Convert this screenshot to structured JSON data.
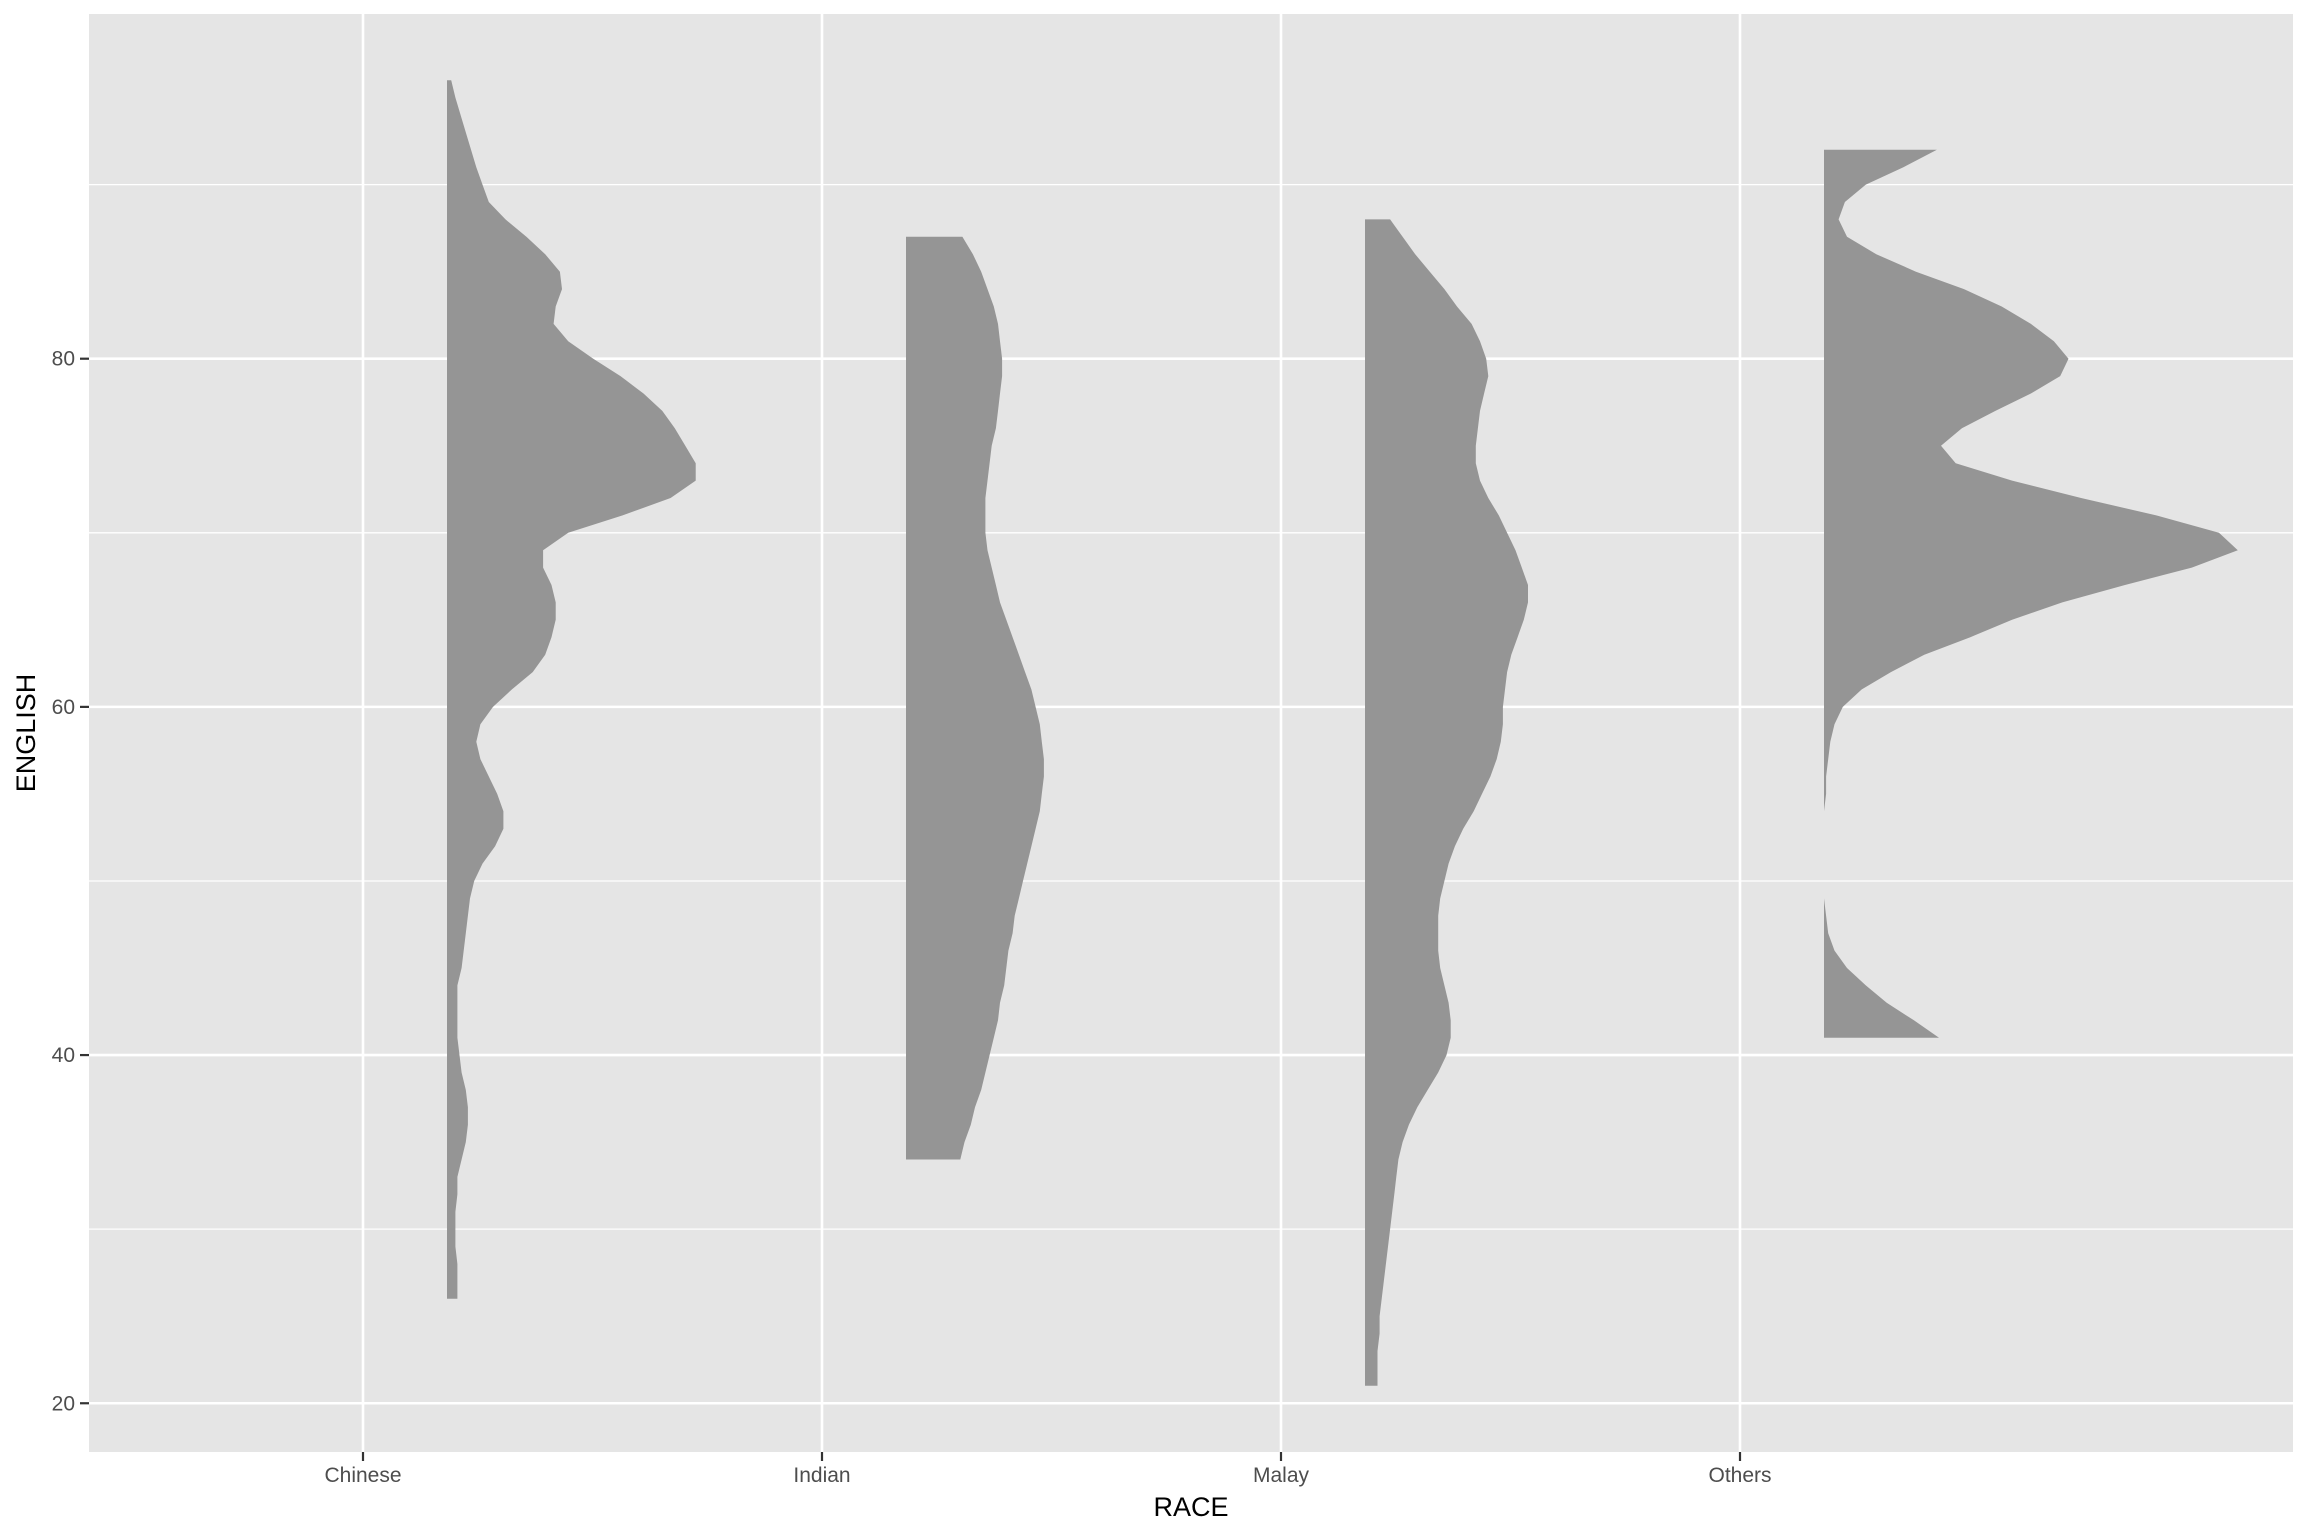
{
  "chart_data": {
    "type": "violin",
    "xlabel": "RACE",
    "ylabel": "ENGLISH",
    "categories": [
      "Chinese",
      "Indian",
      "Malay",
      "Others"
    ],
    "y_ticks": [
      20,
      40,
      60,
      80
    ],
    "ylim": [
      17.2,
      99.8
    ],
    "grid": true,
    "fill_color": "#959595",
    "panel_color": "#e5e5e5",
    "grid_color": "#ffffff",
    "series": [
      {
        "category": "Chinese",
        "ymin": 26,
        "ymax": 96,
        "density_profile": [
          [
            96,
            0.02
          ],
          [
            95,
            0.04
          ],
          [
            93,
            0.09
          ],
          [
            91,
            0.14
          ],
          [
            90,
            0.17
          ],
          [
            89,
            0.2
          ],
          [
            88,
            0.28
          ],
          [
            87,
            0.38
          ],
          [
            86,
            0.47
          ],
          [
            85,
            0.54
          ],
          [
            84,
            0.55
          ],
          [
            83,
            0.52
          ],
          [
            82,
            0.51
          ],
          [
            81,
            0.58
          ],
          [
            80,
            0.7
          ],
          [
            79,
            0.83
          ],
          [
            78,
            0.94
          ],
          [
            77,
            1.03
          ],
          [
            76,
            1.09
          ],
          [
            75,
            1.14
          ],
          [
            74,
            1.19
          ],
          [
            73,
            1.19
          ],
          [
            72,
            1.07
          ],
          [
            71,
            0.84
          ],
          [
            70,
            0.58
          ],
          [
            69,
            0.46
          ],
          [
            68,
            0.46
          ],
          [
            67,
            0.5
          ],
          [
            66,
            0.52
          ],
          [
            65,
            0.52
          ],
          [
            64,
            0.5
          ],
          [
            63,
            0.47
          ],
          [
            62,
            0.41
          ],
          [
            61,
            0.31
          ],
          [
            60,
            0.22
          ],
          [
            59,
            0.16
          ],
          [
            58,
            0.14
          ],
          [
            57,
            0.16
          ],
          [
            56,
            0.2
          ],
          [
            55,
            0.24
          ],
          [
            54,
            0.27
          ],
          [
            53,
            0.27
          ],
          [
            52,
            0.23
          ],
          [
            51,
            0.17
          ],
          [
            50,
            0.13
          ],
          [
            49,
            0.11
          ],
          [
            48,
            0.1
          ],
          [
            47,
            0.09
          ],
          [
            46,
            0.08
          ],
          [
            45,
            0.07
          ],
          [
            44,
            0.05
          ],
          [
            43,
            0.05
          ],
          [
            42,
            0.05
          ],
          [
            41,
            0.05
          ],
          [
            40,
            0.06
          ],
          [
            39,
            0.07
          ],
          [
            38,
            0.09
          ],
          [
            37,
            0.1
          ],
          [
            36,
            0.1
          ],
          [
            35,
            0.09
          ],
          [
            34,
            0.07
          ],
          [
            33,
            0.05
          ],
          [
            32,
            0.05
          ],
          [
            31,
            0.04
          ],
          [
            30,
            0.04
          ],
          [
            29,
            0.04
          ],
          [
            28,
            0.05
          ],
          [
            27,
            0.05
          ],
          [
            26,
            0.05
          ]
        ]
      },
      {
        "category": "Indian",
        "ymin": 34,
        "ymax": 87,
        "density_profile": [
          [
            87,
            0.27
          ],
          [
            86,
            0.32
          ],
          [
            85,
            0.36
          ],
          [
            84,
            0.39
          ],
          [
            83,
            0.42
          ],
          [
            82,
            0.44
          ],
          [
            81,
            0.45
          ],
          [
            80,
            0.46
          ],
          [
            79,
            0.46
          ],
          [
            78,
            0.45
          ],
          [
            77,
            0.44
          ],
          [
            76,
            0.43
          ],
          [
            75,
            0.41
          ],
          [
            74,
            0.4
          ],
          [
            73,
            0.39
          ],
          [
            72,
            0.38
          ],
          [
            71,
            0.38
          ],
          [
            70,
            0.38
          ],
          [
            69,
            0.39
          ],
          [
            68,
            0.41
          ],
          [
            67,
            0.43
          ],
          [
            66,
            0.45
          ],
          [
            65,
            0.48
          ],
          [
            64,
            0.51
          ],
          [
            63,
            0.54
          ],
          [
            62,
            0.57
          ],
          [
            61,
            0.6
          ],
          [
            60,
            0.62
          ],
          [
            59,
            0.64
          ],
          [
            58,
            0.65
          ],
          [
            57,
            0.66
          ],
          [
            56,
            0.66
          ],
          [
            55,
            0.65
          ],
          [
            54,
            0.64
          ],
          [
            53,
            0.62
          ],
          [
            52,
            0.6
          ],
          [
            51,
            0.58
          ],
          [
            50,
            0.56
          ],
          [
            49,
            0.54
          ],
          [
            48,
            0.52
          ],
          [
            47,
            0.51
          ],
          [
            46,
            0.49
          ],
          [
            45,
            0.48
          ],
          [
            44,
            0.47
          ],
          [
            43,
            0.45
          ],
          [
            42,
            0.44
          ],
          [
            41,
            0.42
          ],
          [
            40,
            0.4
          ],
          [
            39,
            0.38
          ],
          [
            38,
            0.36
          ],
          [
            37,
            0.33
          ],
          [
            36,
            0.31
          ],
          [
            35,
            0.28
          ],
          [
            34,
            0.26
          ]
        ]
      },
      {
        "category": "Malay",
        "ymin": 21,
        "ymax": 88,
        "density_profile": [
          [
            88,
            0.12
          ],
          [
            87,
            0.18
          ],
          [
            86,
            0.24
          ],
          [
            85,
            0.31
          ],
          [
            84,
            0.38
          ],
          [
            83,
            0.44
          ],
          [
            82,
            0.51
          ],
          [
            81,
            0.55
          ],
          [
            80,
            0.58
          ],
          [
            79,
            0.59
          ],
          [
            78,
            0.57
          ],
          [
            77,
            0.55
          ],
          [
            76,
            0.54
          ],
          [
            75,
            0.53
          ],
          [
            74,
            0.53
          ],
          [
            73,
            0.55
          ],
          [
            72,
            0.59
          ],
          [
            71,
            0.64
          ],
          [
            70,
            0.68
          ],
          [
            69,
            0.72
          ],
          [
            68,
            0.75
          ],
          [
            67,
            0.78
          ],
          [
            66,
            0.78
          ],
          [
            65,
            0.76
          ],
          [
            64,
            0.73
          ],
          [
            63,
            0.7
          ],
          [
            62,
            0.68
          ],
          [
            61,
            0.67
          ],
          [
            60,
            0.66
          ],
          [
            59,
            0.66
          ],
          [
            58,
            0.65
          ],
          [
            57,
            0.63
          ],
          [
            56,
            0.6
          ],
          [
            55,
            0.56
          ],
          [
            54,
            0.52
          ],
          [
            53,
            0.47
          ],
          [
            52,
            0.43
          ],
          [
            51,
            0.4
          ],
          [
            50,
            0.38
          ],
          [
            49,
            0.36
          ],
          [
            48,
            0.35
          ],
          [
            47,
            0.35
          ],
          [
            46,
            0.35
          ],
          [
            45,
            0.36
          ],
          [
            44,
            0.38
          ],
          [
            43,
            0.4
          ],
          [
            42,
            0.41
          ],
          [
            41,
            0.41
          ],
          [
            40,
            0.39
          ],
          [
            39,
            0.35
          ],
          [
            38,
            0.3
          ],
          [
            37,
            0.25
          ],
          [
            36,
            0.21
          ],
          [
            35,
            0.18
          ],
          [
            34,
            0.16
          ],
          [
            33,
            0.15
          ],
          [
            32,
            0.14
          ],
          [
            31,
            0.13
          ],
          [
            30,
            0.12
          ],
          [
            29,
            0.11
          ],
          [
            28,
            0.1
          ],
          [
            27,
            0.09
          ],
          [
            26,
            0.08
          ],
          [
            25,
            0.07
          ],
          [
            24,
            0.07
          ],
          [
            23,
            0.06
          ],
          [
            22,
            0.06
          ],
          [
            21,
            0.06
          ]
        ]
      },
      {
        "category": "Others",
        "ymin": 41,
        "ymax": 92,
        "density_profile": [
          [
            92,
            0.54
          ],
          [
            91,
            0.38
          ],
          [
            90,
            0.2
          ],
          [
            89,
            0.1
          ],
          [
            88,
            0.07
          ],
          [
            87,
            0.11
          ],
          [
            86,
            0.25
          ],
          [
            85,
            0.44
          ],
          [
            84,
            0.67
          ],
          [
            83,
            0.85
          ],
          [
            82,
            0.99
          ],
          [
            81,
            1.1
          ],
          [
            80,
            1.17
          ],
          [
            79,
            1.13
          ],
          [
            78,
            0.99
          ],
          [
            77,
            0.82
          ],
          [
            76,
            0.66
          ],
          [
            75,
            0.56
          ],
          [
            74,
            0.63
          ],
          [
            73,
            0.9
          ],
          [
            72,
            1.23
          ],
          [
            71,
            1.59
          ],
          [
            70,
            1.89
          ],
          [
            69,
            1.98
          ],
          [
            68,
            1.76
          ],
          [
            67,
            1.44
          ],
          [
            66,
            1.14
          ],
          [
            65,
            0.9
          ],
          [
            64,
            0.7
          ],
          [
            63,
            0.48
          ],
          [
            62,
            0.32
          ],
          [
            61,
            0.18
          ],
          [
            60,
            0.09
          ],
          [
            59,
            0.05
          ],
          [
            58,
            0.03
          ],
          [
            57,
            0.02
          ],
          [
            56,
            0.01
          ],
          [
            55,
            0.01
          ],
          [
            54,
            0.0
          ],
          [
            53,
            0.0
          ],
          [
            52,
            0.0
          ],
          [
            51,
            0.0
          ],
          [
            50,
            0.0
          ],
          [
            49,
            0.0
          ],
          [
            48,
            0.01
          ],
          [
            47,
            0.02
          ],
          [
            46,
            0.05
          ],
          [
            45,
            0.11
          ],
          [
            44,
            0.2
          ],
          [
            43,
            0.3
          ],
          [
            42,
            0.43
          ],
          [
            41,
            0.55
          ]
        ]
      }
    ]
  }
}
